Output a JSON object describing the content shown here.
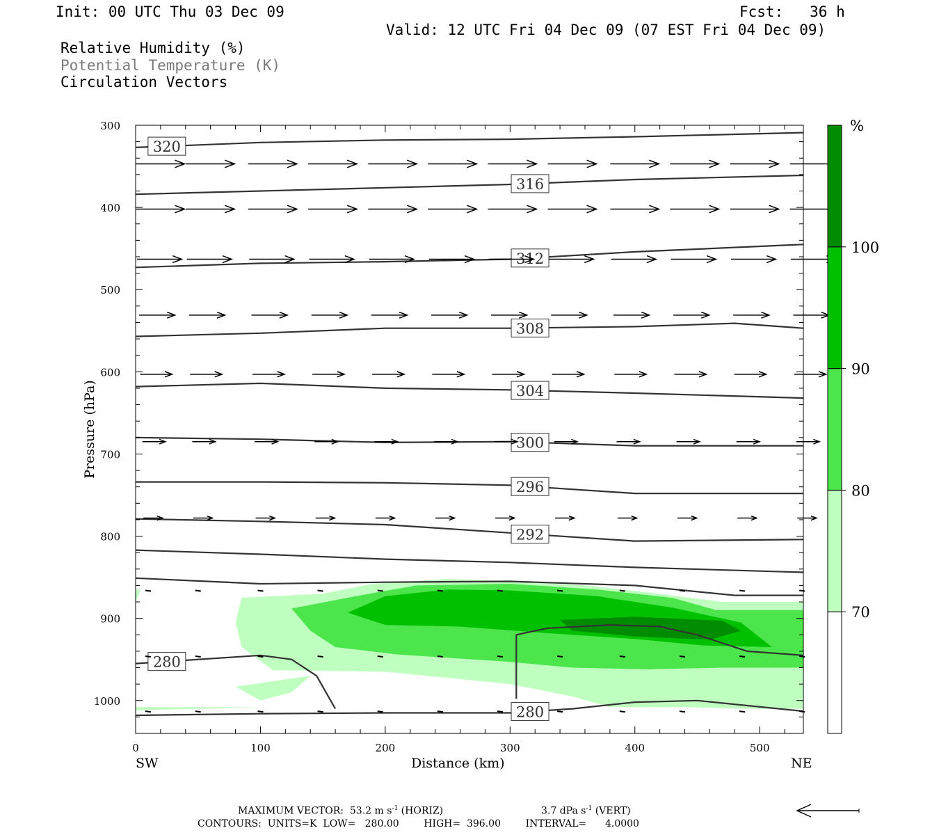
{
  "header": {
    "init": "Init: 00 UTC Thu 03 Dec 09",
    "fcst": "Fcst:   36 h",
    "valid": "Valid: 12 UTC Fri 04 Dec 09 (07 EST Fri 04 Dec 09)",
    "field_rh": "Relative Humidity (%)",
    "field_theta": "Potential Temperature (K)",
    "field_vectors": "Circulation Vectors"
  },
  "footer": {
    "max_vector_label": "MAXIMUM VECTOR:",
    "horiz_value": "53.2 m s",
    "horiz_tag": "(HORIZ)",
    "vert_value": "3.7 dPa s",
    "vert_tag": "(VERT)",
    "exp": "-1",
    "contours": "CONTOURS:  UNITS=K  LOW=   280.00        HIGH=  396.00        INTERVAL=      4.0000"
  },
  "colors": {
    "rh_70": "#bfffbf",
    "rh_80": "#4ce64c",
    "rh_90": "#00c000",
    "rh_100": "#008c00",
    "contour": "#333333"
  },
  "chart_data": {
    "type": "cross-section",
    "xlabel": "Distance (km)",
    "ylabel": "Pressure (hPa)",
    "x_end_labels": [
      "SW",
      "NE"
    ],
    "xlim": [
      0,
      535
    ],
    "ylim": [
      1040,
      300
    ],
    "x_ticks": [
      0,
      100,
      200,
      300,
      400,
      500
    ],
    "y_ticks": [
      300,
      400,
      500,
      600,
      700,
      800,
      900,
      1000
    ],
    "colorbar": {
      "unit": "%",
      "levels": [
        70,
        80,
        90,
        100
      ]
    },
    "rh_regions": [
      {
        "level": 70,
        "points": [
          [
            0,
            865
          ],
          [
            4,
            865
          ],
          [
            0,
            880
          ]
        ]
      },
      {
        "level": 70,
        "points": [
          [
            0,
            1008
          ],
          [
            100,
            1008
          ],
          [
            0,
            1012
          ]
        ]
      },
      {
        "level": 70,
        "points": [
          [
            80,
            983
          ],
          [
            140,
            970
          ],
          [
            125,
            990
          ],
          [
            100,
            1000
          ]
        ]
      },
      {
        "level": 70,
        "points": [
          [
            80,
            905
          ],
          [
            85,
            875
          ],
          [
            150,
            870
          ],
          [
            190,
            858
          ],
          [
            250,
            852
          ],
          [
            300,
            855
          ],
          [
            360,
            860
          ],
          [
            420,
            870
          ],
          [
            470,
            880
          ],
          [
            535,
            880
          ],
          [
            535,
            1010
          ],
          [
            490,
            1010
          ],
          [
            440,
            1008
          ],
          [
            380,
            1008
          ],
          [
            350,
            995
          ],
          [
            300,
            980
          ],
          [
            200,
            965
          ],
          [
            110,
            963
          ],
          [
            85,
            935
          ]
        ]
      },
      {
        "level": 80,
        "points": [
          [
            125,
            888
          ],
          [
            180,
            872
          ],
          [
            225,
            860
          ],
          [
            300,
            858
          ],
          [
            370,
            865
          ],
          [
            430,
            875
          ],
          [
            465,
            890
          ],
          [
            535,
            890
          ],
          [
            535,
            960
          ],
          [
            470,
            960
          ],
          [
            410,
            962
          ],
          [
            350,
            960
          ],
          [
            300,
            953
          ],
          [
            250,
            948
          ],
          [
            210,
            944
          ],
          [
            160,
            935
          ],
          [
            140,
            915
          ]
        ]
      },
      {
        "level": 90,
        "points": [
          [
            170,
            893
          ],
          [
            200,
            873
          ],
          [
            250,
            865
          ],
          [
            300,
            866
          ],
          [
            370,
            873
          ],
          [
            430,
            887
          ],
          [
            485,
            905
          ],
          [
            510,
            935
          ],
          [
            455,
            933
          ],
          [
            400,
            925
          ],
          [
            330,
            918
          ],
          [
            260,
            910
          ],
          [
            200,
            908
          ]
        ]
      },
      {
        "level": 100,
        "points": [
          [
            340,
            902
          ],
          [
            400,
            898
          ],
          [
            470,
            903
          ],
          [
            485,
            915
          ],
          [
            460,
            926
          ],
          [
            400,
            922
          ],
          [
            350,
            915
          ]
        ]
      }
    ],
    "theta_contours": [
      {
        "value": 320,
        "label": "320",
        "points": [
          [
            0,
            327
          ],
          [
            100,
            321
          ],
          [
            200,
            318
          ],
          [
            300,
            317
          ],
          [
            400,
            314
          ],
          [
            535,
            309
          ]
        ],
        "label_x": 25
      },
      {
        "value": 316,
        "label": "316",
        "points": [
          [
            0,
            384
          ],
          [
            100,
            380
          ],
          [
            200,
            376
          ],
          [
            300,
            372
          ],
          [
            400,
            366
          ],
          [
            535,
            361
          ]
        ],
        "label_x": 316
      },
      {
        "value": 312,
        "label": "312",
        "points": [
          [
            0,
            473
          ],
          [
            100,
            468
          ],
          [
            200,
            466
          ],
          [
            300,
            463
          ],
          [
            400,
            454
          ],
          [
            535,
            445
          ]
        ],
        "label_x": 316
      },
      {
        "value": 308,
        "label": "308",
        "points": [
          [
            0,
            557
          ],
          [
            100,
            553
          ],
          [
            200,
            547
          ],
          [
            300,
            547
          ],
          [
            400,
            545
          ],
          [
            480,
            541
          ],
          [
            535,
            547
          ]
        ],
        "label_x": 316
      },
      {
        "value": 304,
        "label": "304",
        "points": [
          [
            0,
            618
          ],
          [
            100,
            614
          ],
          [
            200,
            620
          ],
          [
            300,
            622
          ],
          [
            400,
            626
          ],
          [
            535,
            632
          ]
        ],
        "label_x": 316
      },
      {
        "value": 300,
        "label": "300",
        "points": [
          [
            0,
            680
          ],
          [
            100,
            682
          ],
          [
            200,
            686
          ],
          [
            300,
            685
          ],
          [
            400,
            690
          ],
          [
            535,
            690
          ]
        ],
        "label_x": 316
      },
      {
        "value": 296,
        "label": "296",
        "points": [
          [
            0,
            734
          ],
          [
            100,
            734
          ],
          [
            200,
            735
          ],
          [
            300,
            738
          ],
          [
            400,
            748
          ],
          [
            535,
            748
          ]
        ],
        "label_x": 316
      },
      {
        "value": 292,
        "label": "292",
        "points": [
          [
            0,
            779
          ],
          [
            100,
            782
          ],
          [
            200,
            786
          ],
          [
            300,
            796
          ],
          [
            400,
            806
          ],
          [
            535,
            804
          ]
        ],
        "label_x": 316
      },
      {
        "value": 288,
        "label": "",
        "points": [
          [
            0,
            817
          ],
          [
            100,
            822
          ],
          [
            200,
            828
          ],
          [
            300,
            832
          ],
          [
            400,
            838
          ],
          [
            535,
            844
          ]
        ],
        "label_x": null
      },
      {
        "value": 284,
        "label": "",
        "points": [
          [
            0,
            851
          ],
          [
            100,
            858
          ],
          [
            200,
            856
          ],
          [
            300,
            855
          ],
          [
            400,
            860
          ],
          [
            480,
            872
          ],
          [
            535,
            872
          ]
        ],
        "label_x": null
      },
      {
        "value": 280,
        "label": "280",
        "points": [
          [
            0,
            955
          ],
          [
            100,
            945
          ],
          [
            125,
            950
          ],
          [
            145,
            970
          ],
          [
            160,
            1010
          ]
        ],
        "label_x": 25
      },
      {
        "value": 280,
        "label": "",
        "points": [
          [
            305,
            998
          ],
          [
            305,
            920
          ],
          [
            330,
            912
          ],
          [
            380,
            908
          ],
          [
            420,
            910
          ],
          [
            450,
            920
          ],
          [
            490,
            940
          ],
          [
            535,
            945
          ]
        ],
        "label_x": null
      },
      {
        "value": 280,
        "label": "280",
        "points": [
          [
            0,
            1018
          ],
          [
            100,
            1016
          ],
          [
            200,
            1015
          ],
          [
            300,
            1015
          ],
          [
            350,
            1010
          ],
          [
            400,
            1002
          ],
          [
            450,
            1000
          ],
          [
            535,
            1013
          ]
        ],
        "label_x": 316
      }
    ],
    "vector_rows": [
      {
        "p": 347,
        "u": [
          7.6,
          7.6,
          7.6,
          7.6,
          7.6,
          7.6,
          7.6,
          7.6,
          7.6,
          7.6,
          7.6,
          7.6
        ],
        "w": [
          0,
          0,
          0,
          0,
          0,
          0,
          0,
          0,
          0,
          0,
          0,
          0
        ]
      },
      {
        "p": 402,
        "u": [
          7.6,
          7.6,
          7.6,
          7.6,
          7.6,
          7.6,
          7.6,
          7.6,
          7.6,
          7.6,
          7.6,
          7.6
        ],
        "w": [
          0,
          0,
          0,
          0,
          0,
          0,
          0,
          0,
          0,
          0,
          0,
          0
        ]
      },
      {
        "p": 463,
        "u": [
          7.0,
          7.0,
          7.0,
          7.0,
          7.0,
          7.0,
          7.0,
          7.0,
          7.0,
          7.0,
          7.0,
          7.0
        ],
        "w": [
          0,
          0,
          0,
          0,
          0,
          0,
          0,
          0,
          0,
          0,
          0,
          0
        ]
      },
      {
        "p": 531,
        "u": [
          5.6,
          5.6,
          5.6,
          5.6,
          5.6,
          5.6,
          5.6,
          5.6,
          5.6,
          5.6,
          5.6,
          5.6
        ],
        "w": [
          0,
          0,
          0,
          0,
          0,
          0,
          0,
          0,
          0,
          0,
          0,
          0
        ]
      },
      {
        "p": 603,
        "u": [
          5.0,
          5.0,
          5.0,
          5.0,
          5.0,
          5.0,
          5.0,
          5.0,
          5.0,
          5.0,
          5.0,
          5.0
        ],
        "w": [
          0,
          0,
          0,
          0,
          0,
          0,
          0,
          0,
          0,
          0,
          0,
          0
        ]
      },
      {
        "p": 685,
        "u": [
          3.6,
          3.6,
          3.6,
          3.6,
          3.6,
          3.6,
          3.6,
          3.6,
          3.6,
          3.6,
          3.6,
          3.6
        ],
        "w": [
          0,
          0,
          0,
          0,
          0,
          0,
          0,
          0,
          0,
          0,
          0,
          0
        ]
      },
      {
        "p": 778,
        "u": [
          3.0,
          3.0,
          3.0,
          3.0,
          3.0,
          3.0,
          3.0,
          3.0,
          3.0,
          3.0,
          3.0,
          3.0
        ],
        "w": [
          0,
          0,
          0,
          0,
          0,
          0,
          0,
          0,
          0,
          0,
          0,
          0
        ]
      },
      {
        "p": 866,
        "u": [
          1.0,
          1.0,
          1.0,
          1.0,
          1.0,
          1.0,
          1.0,
          1.0,
          1.0,
          1.0,
          1.0,
          1.0
        ],
        "w": [
          0,
          0,
          0,
          0,
          0,
          0,
          0,
          0,
          0,
          0,
          0,
          0
        ]
      },
      {
        "p": 946,
        "u": [
          0.6,
          0.6,
          0.6,
          0.6,
          0.6,
          0.6,
          0.6,
          0.6,
          0.6,
          0.6,
          0.6,
          0.6
        ],
        "w": [
          0,
          0,
          0,
          0,
          0,
          0,
          0,
          0,
          0,
          0,
          0,
          0
        ]
      },
      {
        "p": 1013,
        "u": [
          0.6,
          0.6,
          0.6,
          0.6,
          0.6,
          0.6,
          0.6,
          0.6,
          0.6,
          0.6,
          0.6,
          0.6
        ],
        "w": [
          0,
          0,
          0,
          0,
          0,
          0,
          0,
          0,
          0,
          0,
          0,
          0
        ]
      }
    ],
    "vector_columns_km": [
      10,
      50,
      100,
      148,
      196,
      244,
      292,
      340,
      390,
      438,
      486,
      534
    ]
  }
}
